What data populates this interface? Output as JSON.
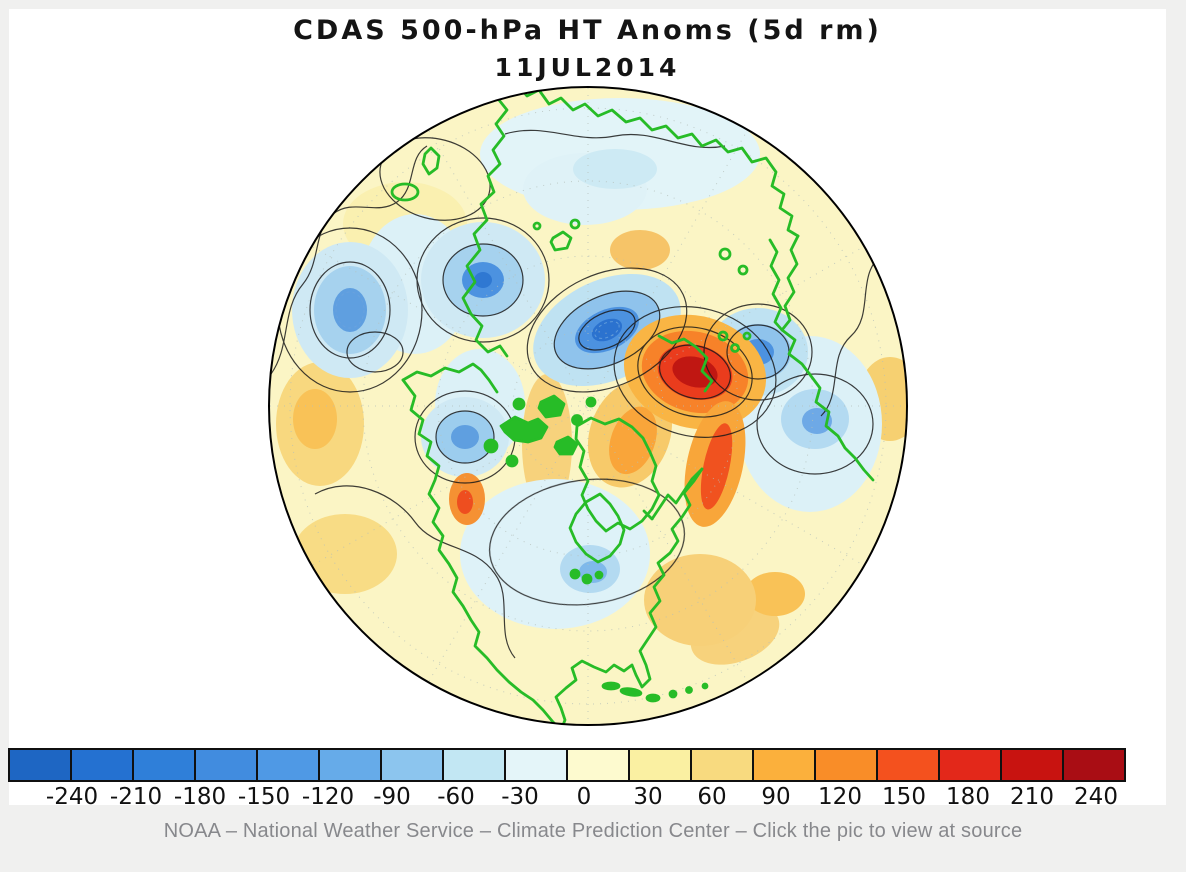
{
  "page": {
    "background_color": "#f0f0ef",
    "panel_color": "#ffffff"
  },
  "header": {
    "title": "CDAS 500-hPa HT Anoms (5d rm)",
    "date": "11JUL2014"
  },
  "chart_data": {
    "type": "heatmap",
    "title": "CDAS 500-hPa HT Anoms (5d rm)",
    "date": "11JUL2014",
    "projection": "Northern Hemisphere polar stereographic",
    "variable": "500-hPa geopotential height anomaly, 5-day running mean",
    "units": "m",
    "colorbar": {
      "levels": [
        -240,
        -210,
        -180,
        -150,
        -120,
        -90,
        -60,
        -30,
        0,
        30,
        60,
        90,
        120,
        150,
        180,
        210,
        240
      ],
      "colors": [
        "#1e66c3",
        "#2471d1",
        "#2f7fd9",
        "#418cdf",
        "#4f99e5",
        "#66abe9",
        "#8cc5ee",
        "#c2e7f3",
        "#e4f5f9",
        "#fdfacf",
        "#faf0a2",
        "#f8da7f",
        "#fbb03c",
        "#f98d28",
        "#f4511e",
        "#e3281a",
        "#c81310",
        "#a90d14"
      ]
    },
    "overlays": {
      "coastlines_color": "#27bc27",
      "anomaly_contours": "thin black lines",
      "graticule": "dotted gray latitude circles and meridians",
      "map_outline": "black circle"
    },
    "map_features": [
      {
        "feature": "strong positive anomaly maximum",
        "region": "Novaya Zemlya / Kara Sea",
        "approx_value_m": "+210 to +270"
      },
      {
        "feature": "positive anomaly band",
        "region": "Baffin Bay / Davis Strait toward Labrador Sea",
        "approx_value_m": "+90 to +180"
      },
      {
        "feature": "negative anomaly",
        "region": "central Arctic north of Laptev Sea",
        "approx_value_m": "-90 to -150"
      },
      {
        "feature": "negative anomaly",
        "region": "Scandinavia / Barents approach",
        "approx_value_m": "-60 to -120"
      },
      {
        "feature": "negative anomaly",
        "region": "North Atlantic south of Iceland",
        "approx_value_m": "-60 to -90"
      },
      {
        "feature": "negative anomaly",
        "region": "east of Novaya Zemlya (western Siberia)",
        "approx_value_m": "-60 to -90"
      },
      {
        "feature": "weak negative anomaly",
        "region": "Hudson Bay / Great Lakes / central North America",
        "approx_value_m": "-30 to -60"
      },
      {
        "feature": "weak positive background",
        "region": "mid-latitude ring around hemisphere",
        "approx_value_m": "0 to +60"
      }
    ]
  },
  "footer": {
    "caption": "NOAA – National Weather Service – Climate Prediction Center – Click the pic to view at source"
  }
}
